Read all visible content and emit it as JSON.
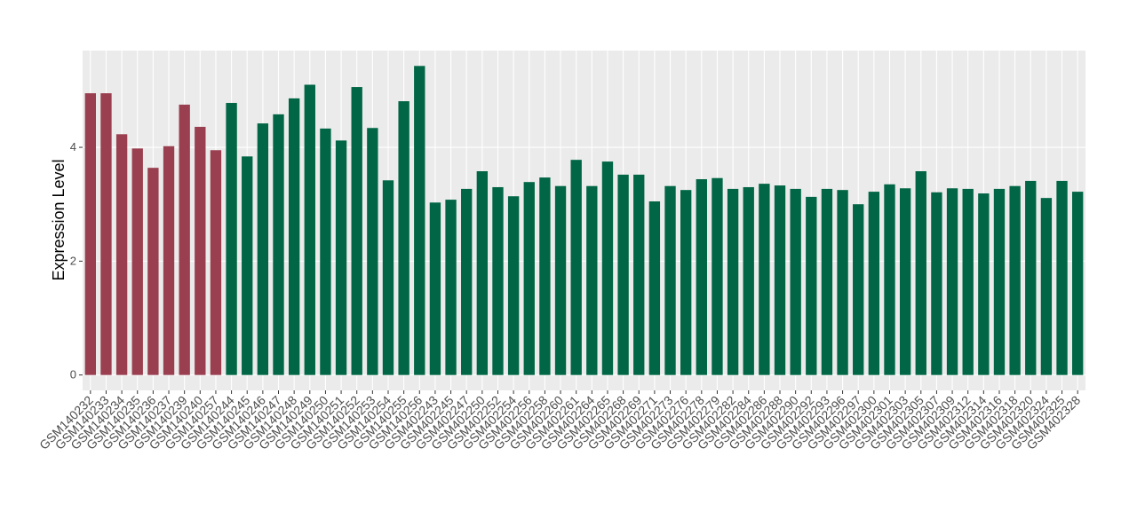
{
  "chart_data": {
    "type": "bar",
    "y_label": "Expression Level",
    "categories": [
      "GSM140232",
      "GSM140233",
      "GSM140234",
      "GSM140235",
      "GSM140236",
      "GSM140237",
      "GSM140239",
      "GSM140240",
      "GSM140257",
      "GSM140244",
      "GSM140245",
      "GSM140246",
      "GSM140247",
      "GSM140248",
      "GSM140249",
      "GSM140250",
      "GSM140251",
      "GSM140252",
      "GSM140253",
      "GSM140254",
      "GSM140255",
      "GSM140256",
      "GSM402243",
      "GSM402245",
      "GSM402247",
      "GSM402250",
      "GSM402252",
      "GSM402254",
      "GSM402256",
      "GSM402258",
      "GSM402260",
      "GSM402261",
      "GSM402264",
      "GSM402265",
      "GSM402268",
      "GSM402269",
      "GSM402271",
      "GSM402273",
      "GSM402276",
      "GSM402278",
      "GSM402279",
      "GSM402282",
      "GSM402284",
      "GSM402286",
      "GSM402288",
      "GSM402290",
      "GSM402292",
      "GSM402293",
      "GSM402296",
      "GSM402297",
      "GSM402300",
      "GSM402301",
      "GSM402303",
      "GSM402305",
      "GSM402307",
      "GSM402309",
      "GSM402312",
      "GSM402314",
      "GSM402316",
      "GSM402318",
      "GSM402320",
      "GSM402324",
      "GSM402325",
      "GSM402328"
    ],
    "values": [
      4.95,
      4.95,
      4.23,
      3.98,
      3.64,
      4.02,
      4.75,
      4.36,
      3.95,
      4.78,
      3.84,
      4.42,
      4.58,
      4.86,
      5.1,
      4.33,
      4.12,
      5.06,
      4.34,
      3.42,
      4.81,
      5.43,
      3.03,
      3.08,
      3.27,
      3.58,
      3.3,
      3.14,
      3.39,
      3.47,
      3.32,
      3.78,
      3.32,
      3.75,
      3.52,
      3.52,
      3.05,
      3.32,
      3.25,
      3.44,
      3.46,
      3.27,
      3.3,
      3.36,
      3.33,
      3.27,
      3.13,
      3.27,
      3.25,
      3.0,
      3.22,
      3.35,
      3.28,
      3.58,
      3.21,
      3.28,
      3.27,
      3.19,
      3.27,
      3.32,
      3.41,
      3.11,
      3.41,
      3.22
    ],
    "colors": [
      "#9a3f4f",
      "#9a3f4f",
      "#9a3f4f",
      "#9a3f4f",
      "#9a3f4f",
      "#9a3f4f",
      "#9a3f4f",
      "#9a3f4f",
      "#9a3f4f",
      "#006645",
      "#006645",
      "#006645",
      "#006645",
      "#006645",
      "#006645",
      "#006645",
      "#006645",
      "#006645",
      "#006645",
      "#006645",
      "#006645",
      "#006645",
      "#006645",
      "#006645",
      "#006645",
      "#006645",
      "#006645",
      "#006645",
      "#006645",
      "#006645",
      "#006645",
      "#006645",
      "#006645",
      "#006645",
      "#006645",
      "#006645",
      "#006645",
      "#006645",
      "#006645",
      "#006645",
      "#006645",
      "#006645",
      "#006645",
      "#006645",
      "#006645",
      "#006645",
      "#006645",
      "#006645",
      "#006645",
      "#006645",
      "#006645",
      "#006645",
      "#006645",
      "#006645",
      "#006645",
      "#006645",
      "#006645",
      "#006645",
      "#006645",
      "#006645",
      "#006645",
      "#006645",
      "#006645",
      "#006645"
    ],
    "ylim": [
      -0.27,
      5.7
    ],
    "yticks": [
      0,
      2,
      4
    ],
    "grid": true
  }
}
